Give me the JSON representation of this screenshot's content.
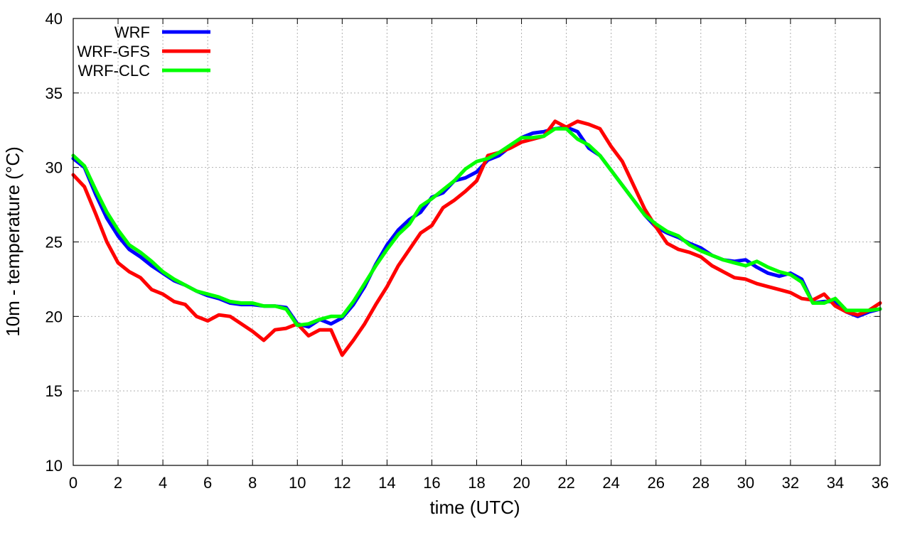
{
  "chart_data": {
    "type": "line",
    "title": "",
    "xlabel": "time (UTC)",
    "ylabel": "10m - temperature (°C)",
    "xlim": [
      0,
      36
    ],
    "ylim": [
      10,
      40
    ],
    "xticks": [
      "0",
      "2",
      "4",
      "6",
      "8",
      "10",
      "12",
      "14",
      "16",
      "18",
      "20",
      "22",
      "24",
      "26",
      "28",
      "30",
      "32",
      "34",
      "36"
    ],
    "yticks": [
      "10",
      "15",
      "20",
      "25",
      "30",
      "35",
      "40"
    ],
    "grid": true,
    "legend_position": "top-left",
    "x": [
      0,
      0.5,
      1,
      1.5,
      2,
      2.5,
      3,
      3.5,
      4,
      4.5,
      5,
      5.5,
      6,
      6.5,
      7,
      7.5,
      8,
      8.5,
      9,
      9.5,
      10,
      10.5,
      11,
      11.5,
      12,
      12.5,
      13,
      13.5,
      14,
      14.5,
      15,
      15.5,
      16,
      16.5,
      17,
      17.5,
      18,
      18.5,
      19,
      19.5,
      20,
      20.5,
      21,
      21.5,
      22,
      22.5,
      23,
      23.5,
      24,
      24.5,
      25,
      25.5,
      26,
      26.5,
      27,
      27.5,
      28,
      28.5,
      29,
      29.5,
      30,
      30.5,
      31,
      31.5,
      32,
      32.5,
      33,
      33.5,
      34,
      34.5,
      35,
      35.5,
      36
    ],
    "series": [
      {
        "name": "WRF",
        "color": "#0000ff",
        "values": [
          30.6,
          30.0,
          28.2,
          26.6,
          25.4,
          24.5,
          24.0,
          23.4,
          22.9,
          22.4,
          22.1,
          21.7,
          21.4,
          21.2,
          20.9,
          20.8,
          20.8,
          20.7,
          20.7,
          20.6,
          19.5,
          19.3,
          19.8,
          19.5,
          19.9,
          20.8,
          22.0,
          23.5,
          24.8,
          25.8,
          26.5,
          27.0,
          28.0,
          28.3,
          29.1,
          29.3,
          29.7,
          30.5,
          30.8,
          31.4,
          32.0,
          32.3,
          32.4,
          32.6,
          32.7,
          32.4,
          31.3,
          30.8,
          29.8,
          28.8,
          27.8,
          26.8,
          26.0,
          25.6,
          25.3,
          24.9,
          24.6,
          24.1,
          23.8,
          23.7,
          23.8,
          23.3,
          22.9,
          22.7,
          22.9,
          22.5,
          20.9,
          21.0,
          21.0,
          20.3,
          20.0,
          20.3,
          20.5
        ]
      },
      {
        "name": "WRF-GFS",
        "color": "#ff0000",
        "values": [
          29.5,
          28.7,
          26.9,
          25.0,
          23.6,
          23.0,
          22.6,
          21.8,
          21.5,
          21.0,
          20.8,
          20.0,
          19.7,
          20.1,
          20.0,
          19.5,
          19.0,
          18.4,
          19.1,
          19.2,
          19.5,
          18.7,
          19.1,
          19.1,
          17.4,
          18.4,
          19.5,
          20.8,
          22.0,
          23.4,
          24.5,
          25.6,
          26.1,
          27.3,
          27.8,
          28.4,
          29.1,
          30.8,
          31.0,
          31.3,
          31.7,
          31.9,
          32.1,
          33.1,
          32.7,
          33.1,
          32.9,
          32.6,
          31.4,
          30.4,
          28.8,
          27.2,
          26.0,
          24.9,
          24.5,
          24.3,
          24.0,
          23.4,
          23.0,
          22.6,
          22.5,
          22.2,
          22.0,
          21.8,
          21.6,
          21.2,
          21.1,
          21.5,
          20.7,
          20.3,
          20.1,
          20.4,
          20.9
        ]
      },
      {
        "name": "WRF-CLC",
        "color": "#00ff00",
        "values": [
          30.8,
          30.1,
          28.5,
          27.0,
          25.8,
          24.8,
          24.3,
          23.7,
          23.0,
          22.5,
          22.1,
          21.7,
          21.5,
          21.3,
          21.0,
          20.9,
          20.9,
          20.7,
          20.7,
          20.5,
          19.4,
          19.5,
          19.8,
          20.0,
          20.0,
          21.0,
          22.2,
          23.4,
          24.5,
          25.5,
          26.2,
          27.4,
          27.9,
          28.5,
          29.1,
          29.9,
          30.4,
          30.6,
          31.0,
          31.5,
          32.0,
          32.0,
          32.1,
          32.6,
          32.6,
          31.9,
          31.5,
          30.8,
          29.8,
          28.8,
          27.8,
          26.8,
          26.2,
          25.7,
          25.4,
          24.8,
          24.4,
          24.1,
          23.8,
          23.6,
          23.4,
          23.7,
          23.3,
          23.0,
          22.8,
          22.3,
          20.9,
          20.9,
          21.2,
          20.4,
          20.4,
          20.4,
          20.5
        ]
      }
    ]
  }
}
